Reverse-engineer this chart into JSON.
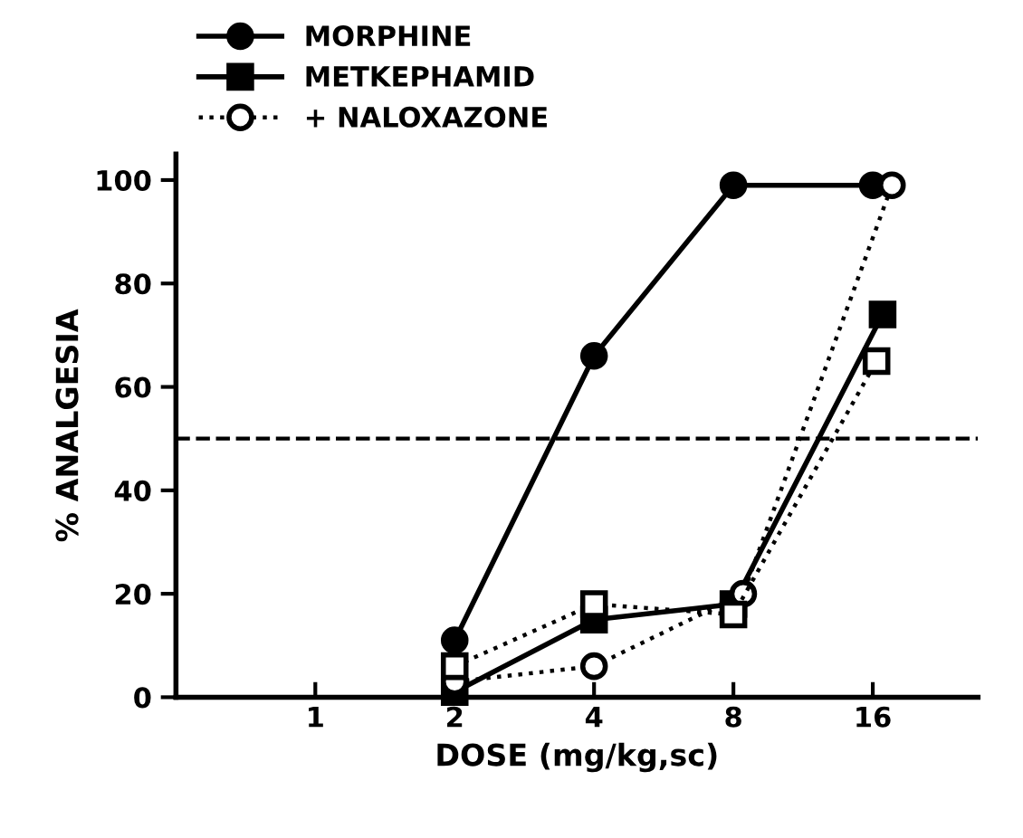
{
  "chart_data": {
    "type": "line",
    "xlabel": "DOSE (mg/kg,sc)",
    "ylabel": "% ANALGESIA",
    "log": "x",
    "xlim": [
      0.5,
      27
    ],
    "xticks": [
      1,
      2,
      4,
      8,
      16
    ],
    "ylim": [
      0,
      105
    ],
    "yticks": [
      0,
      20,
      40,
      60,
      80,
      100
    ],
    "grid": false,
    "legend": "top",
    "ref_lines": [
      {
        "axis": "y",
        "value": 50,
        "line_style": "dashed",
        "color": "#000000"
      }
    ],
    "series": [
      {
        "name": "MORPHINE",
        "color": "#000000",
        "x": [
          2,
          4,
          8,
          16
        ],
        "values": [
          11,
          66,
          99,
          99
        ],
        "marker": "circle",
        "line_style": "solid"
      },
      {
        "name": "METKEPHAMID",
        "color": "#000000",
        "x": [
          2,
          4,
          8,
          16.8
        ],
        "values": [
          1,
          15,
          18,
          74
        ],
        "marker": "square",
        "line_style": "solid"
      },
      {
        "name": "+ NALOXAZONE",
        "color": "#000000",
        "x": [
          2,
          4,
          8.4,
          17.6
        ],
        "values": [
          3,
          6,
          20,
          99
        ],
        "marker": "circle",
        "line_style": "dotted"
      },
      {
        "color": "#000000",
        "x": [
          2,
          4,
          8,
          16.3
        ],
        "values": [
          6,
          18,
          16,
          65
        ],
        "marker": "square",
        "line_style": "dotted"
      }
    ]
  }
}
